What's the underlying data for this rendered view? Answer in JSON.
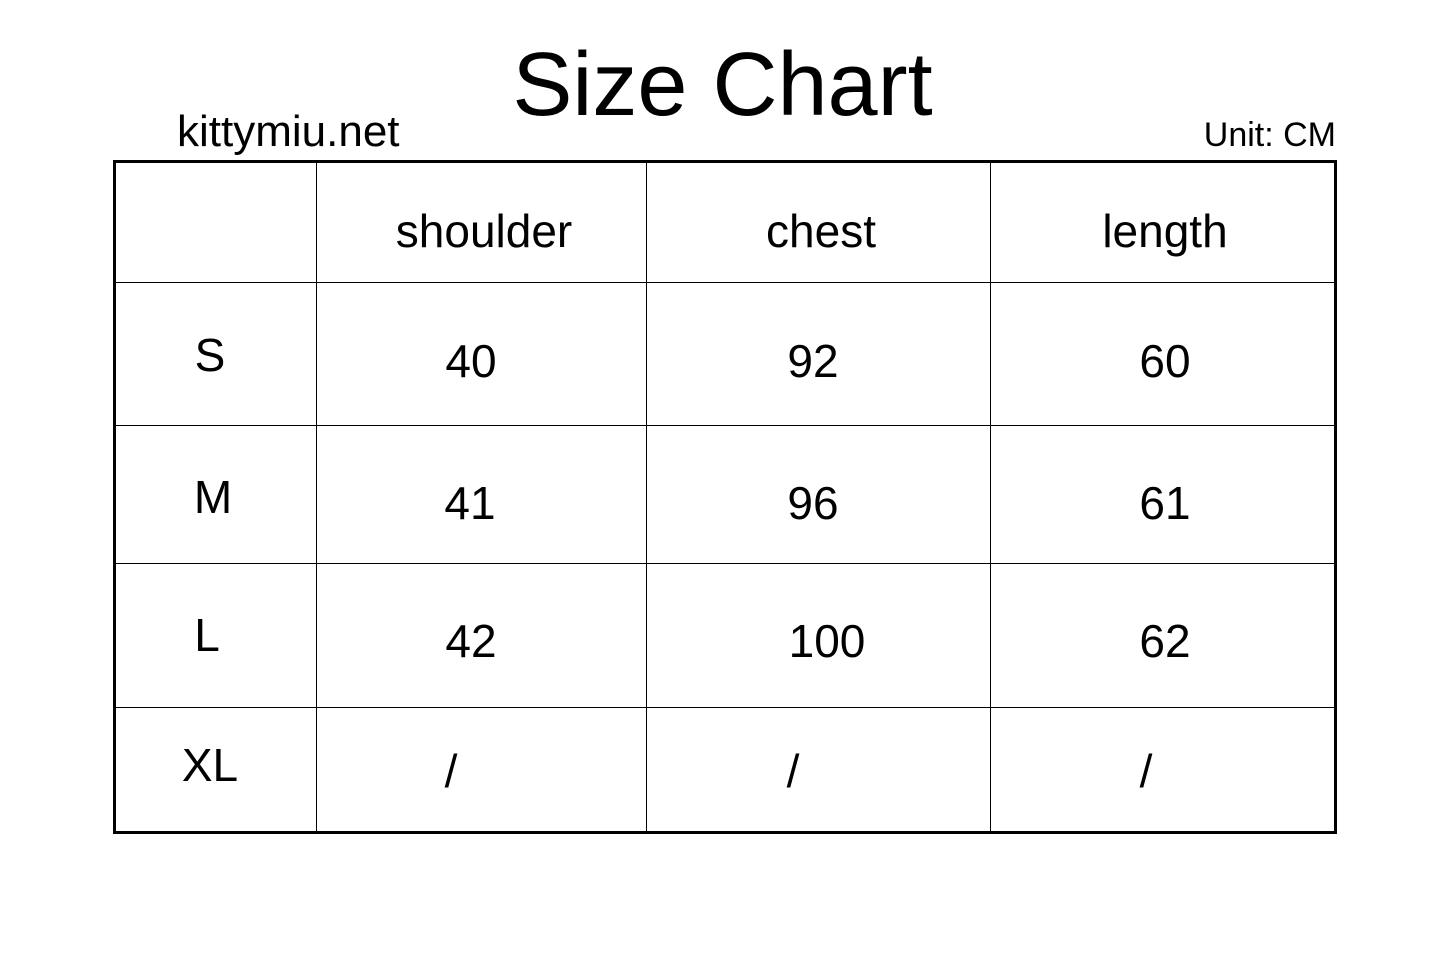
{
  "title": "Size Chart",
  "site": "kittymiu.net",
  "unit": "Unit: CM",
  "table": {
    "columns": [
      "",
      "shoulder",
      "chest",
      "length"
    ],
    "rows": [
      {
        "size": "S",
        "values": [
          "40",
          "92",
          "60"
        ]
      },
      {
        "size": "M",
        "values": [
          "41",
          "96",
          "61"
        ]
      },
      {
        "size": "L",
        "values": [
          "42",
          "100",
          "62"
        ]
      },
      {
        "size": "XL",
        "values": [
          "/",
          "/",
          "/"
        ]
      }
    ]
  }
}
